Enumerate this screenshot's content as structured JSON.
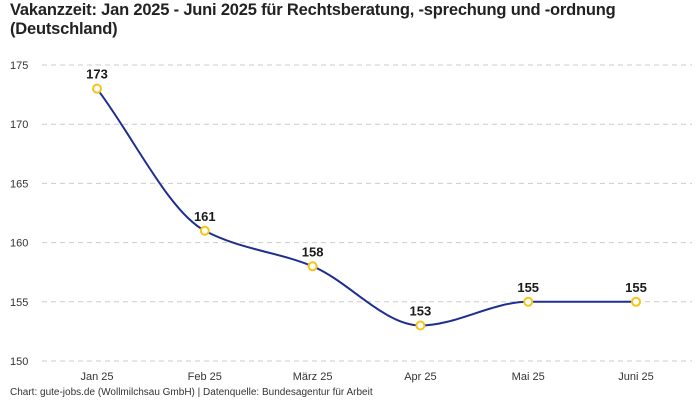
{
  "chart_data": {
    "type": "line",
    "title": "Vakanzzeit: Jan 2025 - Juni 2025 für Rechtsberatung, -sprechung und -ordnung (Deutschland)",
    "xlabel": "",
    "ylabel": "",
    "categories": [
      "Jan 25",
      "Feb 25",
      "März 25",
      "Apr 25",
      "Mai 25",
      "Juni 25"
    ],
    "series": [
      {
        "name": "Vakanzzeit",
        "values": [
          173,
          161,
          158,
          153,
          155,
          155
        ]
      }
    ],
    "ylim": [
      150,
      175
    ],
    "yticks": [
      150,
      155,
      160,
      165,
      170,
      175
    ],
    "grid": true,
    "smooth": true,
    "colors": {
      "line": "#1f2f8f",
      "marker_stroke": "#f5c518",
      "marker_fill": "#ffffff",
      "grid": "#cccccc"
    }
  },
  "footer": "Chart: gute-jobs.de (Wollmilchsau GmbH) | Datenquelle: Bundesagentur für Arbeit"
}
